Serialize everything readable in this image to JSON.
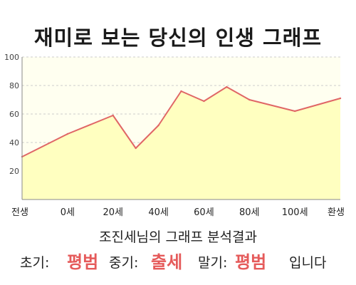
{
  "title": "재미로 보는 당신의 인생 그래프",
  "chart_data": {
    "type": "area",
    "x": [
      "전생",
      "0세",
      "20세",
      "40세",
      "60세",
      "80세",
      "100세",
      "환생"
    ],
    "series": [
      {
        "points": [
          [
            0,
            30
          ],
          [
            1,
            46
          ],
          [
            2,
            59
          ],
          [
            2.5,
            36
          ],
          [
            3,
            52
          ],
          [
            3.5,
            76
          ],
          [
            4,
            69
          ],
          [
            4.5,
            79
          ],
          [
            5,
            70
          ],
          [
            6,
            62
          ],
          [
            7,
            71
          ]
        ]
      }
    ],
    "ylim": [
      0,
      100
    ],
    "yticks": [
      20,
      40,
      60,
      80,
      100
    ],
    "grid": true,
    "colors": {
      "line": "#e06666",
      "fill": "#ffffc0",
      "plot_bg": "#fffff0",
      "grid": "#cccccc"
    }
  },
  "result": {
    "subtitle": "조진세님의 그래프 분석결과",
    "early_label": "초기:",
    "early_value": "평범",
    "mid_label": "중기:",
    "mid_value": "출세",
    "late_label": "말기:",
    "late_value": "평범",
    "suffix": "입니다"
  }
}
